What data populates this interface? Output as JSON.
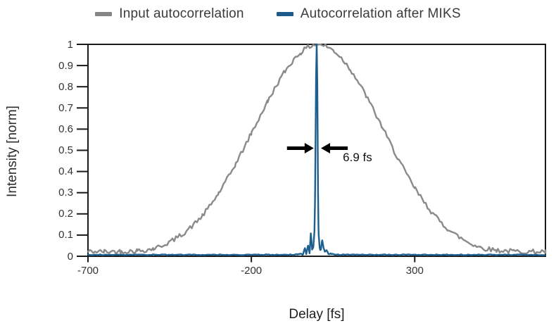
{
  "legend": {
    "items": [
      {
        "label": "Input autocorrelation",
        "color": "#858585"
      },
      {
        "label": "Autocorrelation after MIKS",
        "color": "#1b5a8a"
      }
    ]
  },
  "chart_data": {
    "type": "line",
    "title": "",
    "xlabel": "Delay [fs]",
    "ylabel": "Intensity [norm]",
    "xlim": [
      -700,
      700
    ],
    "ylim": [
      0,
      1
    ],
    "grid": false,
    "legend_position": "top-center",
    "x_tick_values": [
      -700,
      -200,
      300
    ],
    "x_tick_labels": [
      "-700",
      "-200",
      "300"
    ],
    "y_tick_values": [
      0,
      0.1,
      0.2,
      0.3,
      0.4,
      0.5,
      0.6,
      0.7,
      0.8,
      0.9,
      1
    ],
    "y_tick_labels": [
      "0",
      "0.1",
      "0.2",
      "0.3",
      "0.4",
      "0.5",
      "0.6",
      "0.7",
      "0.8",
      "0.9",
      "1"
    ],
    "axis_color": "#1a1a1a",
    "series": [
      {
        "name": "Input autocorrelation",
        "color": "#8a8a8a",
        "stroke_width": 2.4,
        "noise_amplitude": 0.011,
        "fwhm_fs": 470,
        "points": [
          [
            -700,
            0.022
          ],
          [
            -650,
            0.022
          ],
          [
            -600,
            0.023
          ],
          [
            -550,
            0.026
          ],
          [
            -500,
            0.036
          ],
          [
            -450,
            0.068
          ],
          [
            -400,
            0.118
          ],
          [
            -350,
            0.192
          ],
          [
            -300,
            0.298
          ],
          [
            -250,
            0.43
          ],
          [
            -200,
            0.58
          ],
          [
            -150,
            0.73
          ],
          [
            -100,
            0.866
          ],
          [
            -50,
            0.96
          ],
          [
            0,
            1.0
          ],
          [
            50,
            0.972
          ],
          [
            100,
            0.888
          ],
          [
            150,
            0.76
          ],
          [
            200,
            0.61
          ],
          [
            250,
            0.458
          ],
          [
            300,
            0.322
          ],
          [
            350,
            0.212
          ],
          [
            400,
            0.131
          ],
          [
            450,
            0.078
          ],
          [
            500,
            0.043
          ],
          [
            550,
            0.029
          ],
          [
            600,
            0.024
          ],
          [
            650,
            0.022
          ],
          [
            700,
            0.022
          ]
        ]
      },
      {
        "name": "Autocorrelation after MIKS",
        "color": "#1d5f8f",
        "stroke_width": 2.4,
        "noise_amplitude": 0.002,
        "fwhm_fs": 6.9,
        "points": [
          [
            -700,
            0.007
          ],
          [
            -400,
            0.007
          ],
          [
            -200,
            0.007
          ],
          [
            -100,
            0.007
          ],
          [
            -60,
            0.008
          ],
          [
            -48,
            0.012
          ],
          [
            -42,
            0.008
          ],
          [
            -36,
            0.04
          ],
          [
            -32,
            0.012
          ],
          [
            -26,
            0.05
          ],
          [
            -22,
            0.015
          ],
          [
            -18,
            0.11
          ],
          [
            -14,
            0.03
          ],
          [
            -10,
            0.05
          ],
          [
            -7,
            0.12
          ],
          [
            -5,
            0.3
          ],
          [
            -2,
            0.85
          ],
          [
            0,
            1.0
          ],
          [
            2,
            0.8
          ],
          [
            4,
            0.3
          ],
          [
            6,
            0.1
          ],
          [
            9,
            0.04
          ],
          [
            13,
            0.03
          ],
          [
            17,
            0.075
          ],
          [
            21,
            0.04
          ],
          [
            25,
            0.02
          ],
          [
            30,
            0.028
          ],
          [
            36,
            0.012
          ],
          [
            45,
            0.012
          ],
          [
            60,
            0.008
          ],
          [
            100,
            0.007
          ],
          [
            300,
            0.007
          ],
          [
            500,
            0.007
          ],
          [
            700,
            0.007
          ]
        ]
      }
    ],
    "annotations": [
      {
        "text": "6.9 fs",
        "text_x_fs": 80,
        "text_y_norm": 0.465,
        "arrow_y_norm": 0.51,
        "arrow_tip_left_fs": -9,
        "arrow_tip_right_fs": 13,
        "arrow_length_fs": 82,
        "arrow_color": "#000000"
      }
    ]
  }
}
